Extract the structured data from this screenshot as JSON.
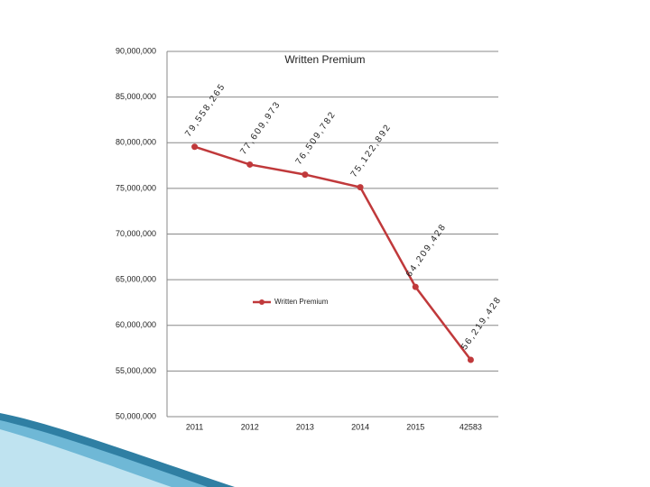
{
  "chart_data": {
    "type": "line",
    "title": "Written Premium",
    "categories": [
      "2011",
      "2012",
      "2013",
      "2014",
      "2015",
      "42583"
    ],
    "series": [
      {
        "name": "Written Premium",
        "color": "#c0393b",
        "values": [
          79558265,
          77609973,
          76509782,
          75122892,
          64209428,
          56219428
        ],
        "value_labels": [
          "79,558,265",
          "77,609,973",
          "76,509,782",
          "75,122,892",
          "64,209,428",
          "56,219,428"
        ]
      }
    ],
    "ylim": [
      50000000,
      90000000
    ],
    "yticks": [
      {
        "value": 50000000,
        "label": "50,000,000"
      },
      {
        "value": 55000000,
        "label": "55,000,000"
      },
      {
        "value": 60000000,
        "label": "60,000,000"
      },
      {
        "value": 65000000,
        "label": "65,000,000"
      },
      {
        "value": 70000000,
        "label": "70,000,000"
      },
      {
        "value": 75000000,
        "label": "75,000,000"
      },
      {
        "value": 80000000,
        "label": "80,000,000"
      },
      {
        "value": 85000000,
        "label": "85,000,000"
      },
      {
        "value": 90000000,
        "label": "90,000,000"
      }
    ],
    "grid": true,
    "legend": "center"
  }
}
